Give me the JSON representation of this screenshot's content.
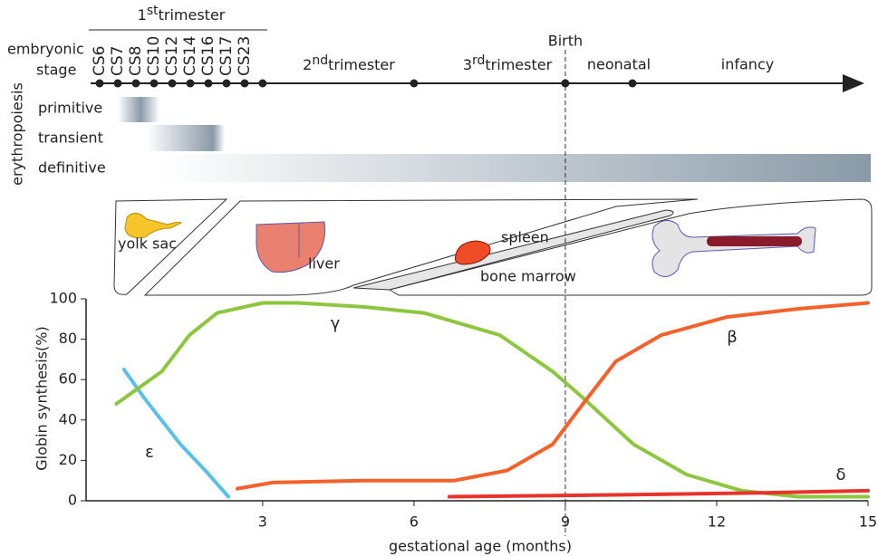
{
  "timeline": {
    "first_trimester": {
      "num": "1",
      "sup": "st",
      "word": "trimester"
    },
    "row_label": [
      "embryonic",
      "stage"
    ],
    "stages": [
      "CS6",
      "CS7",
      "CS8",
      "CS10",
      "CS12",
      "CS14",
      "CS16",
      "CS17",
      "CS23"
    ],
    "second_trimester": {
      "num": "2",
      "sup": "nd",
      "word": "trimester"
    },
    "third_trimester": {
      "num": "3",
      "sup": "rd",
      "word": "trimester"
    },
    "birth": "Birth",
    "neonatal": "neonatal",
    "infancy": "infancy"
  },
  "erythropoiesis": {
    "label": "erythropoiesis",
    "rows": [
      "primitive",
      "transient",
      "definitive"
    ]
  },
  "organs": [
    "yolk sac",
    "liver",
    "spleen",
    "bone marrow"
  ],
  "chart_data": {
    "type": "line",
    "xlabel": "gestational age (months)",
    "ylabel": "Globin synthesis(%)",
    "xlim": [
      -0.5,
      15
    ],
    "xticks": [
      3,
      6,
      9,
      12,
      15
    ],
    "ylim": [
      0,
      100
    ],
    "yticks": [
      0,
      20,
      40,
      60,
      80,
      100
    ],
    "vline": 9,
    "series": [
      {
        "name": "ε",
        "color": "#5bc0e8",
        "x": [
          0.25,
          0.65,
          1.37,
          1.9,
          2.32
        ],
        "values": [
          65,
          51,
          28,
          14,
          2
        ]
      },
      {
        "name": "γ",
        "color": "#8dc63f",
        "x": [
          0.1,
          1.0,
          1.55,
          2.1,
          3.0,
          3.7,
          5.0,
          6.2,
          7.7,
          8.75,
          9.35,
          10.35,
          11.4,
          12.5,
          13.6,
          15
        ],
        "values": [
          48,
          64,
          82,
          93,
          98,
          98,
          96,
          93,
          82,
          64,
          51,
          28,
          13,
          5,
          2,
          2
        ]
      },
      {
        "name": "β",
        "color": "#f4622c",
        "x": [
          2.5,
          3.2,
          5.0,
          6.8,
          7.85,
          8.75,
          9.35,
          10.0,
          10.9,
          12.2,
          13.6,
          15
        ],
        "values": [
          6,
          9,
          10,
          10,
          15,
          28,
          48,
          69,
          82,
          91,
          95,
          98
        ]
      },
      {
        "name": "δ",
        "color": "#e8322a",
        "x": [
          6.7,
          10.35,
          13.05,
          15
        ],
        "values": [
          2,
          3,
          4,
          5
        ]
      }
    ]
  }
}
